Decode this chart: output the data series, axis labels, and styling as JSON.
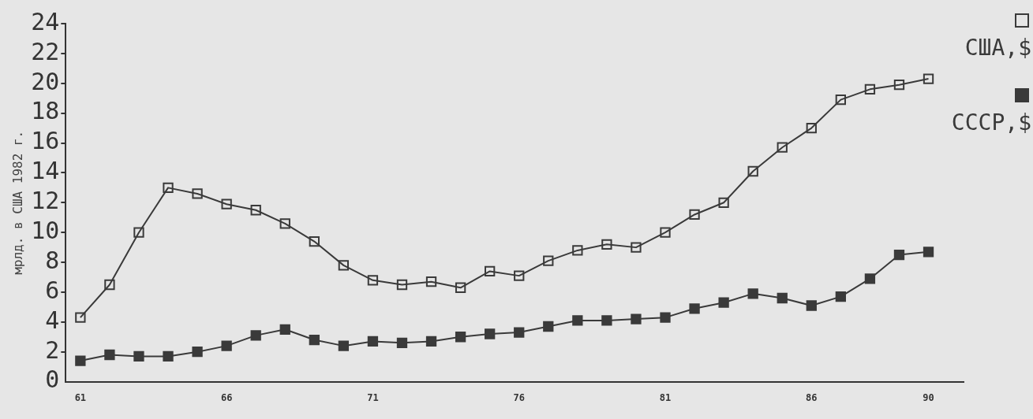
{
  "chart_data": {
    "type": "line",
    "ylabel": "мрлд. в США 1982 г.",
    "x": [
      61,
      62,
      63,
      64,
      65,
      66,
      67,
      68,
      69,
      70,
      71,
      72,
      73,
      74,
      75,
      76,
      77,
      78,
      79,
      80,
      81,
      82,
      83,
      84,
      85,
      86,
      87,
      88,
      89,
      90
    ],
    "xlim": [
      60.5,
      91.2
    ],
    "xticks": [
      61,
      66,
      71,
      76,
      81,
      86,
      90
    ],
    "ylim": [
      0,
      24
    ],
    "yticks": [
      0,
      2,
      4,
      6,
      8,
      10,
      12,
      14,
      16,
      18,
      20,
      22,
      24
    ],
    "grid": false,
    "legend": "top right",
    "marker": "square",
    "line_style": "solid",
    "series": [
      {
        "name": "США,$",
        "color": "#3a3a3a",
        "values": [
          4.3,
          6.5,
          10,
          13,
          12.6,
          11.9,
          11.5,
          10.6,
          9.4,
          7.8,
          6.8,
          6.5,
          6.7,
          6.3,
          7.4,
          7.1,
          8.1,
          8.8,
          9.2,
          9.0,
          10.0,
          11.2,
          12.0,
          14.1,
          15.7,
          17.0,
          18.9,
          19.6,
          19.9,
          20.3
        ]
      },
      {
        "name": "СССР,$",
        "color": "#3a3a3a",
        "values": [
          1.4,
          1.8,
          1.7,
          1.7,
          2.0,
          2.4,
          3.1,
          3.5,
          2.8,
          2.4,
          2.7,
          2.6,
          2.7,
          3.0,
          3.2,
          3.3,
          3.7,
          4.1,
          4.1,
          4.2,
          4.3,
          4.9,
          5.3,
          5.9,
          5.6,
          5.1,
          5.7,
          6.9,
          8.5,
          8.7
        ]
      }
    ]
  }
}
